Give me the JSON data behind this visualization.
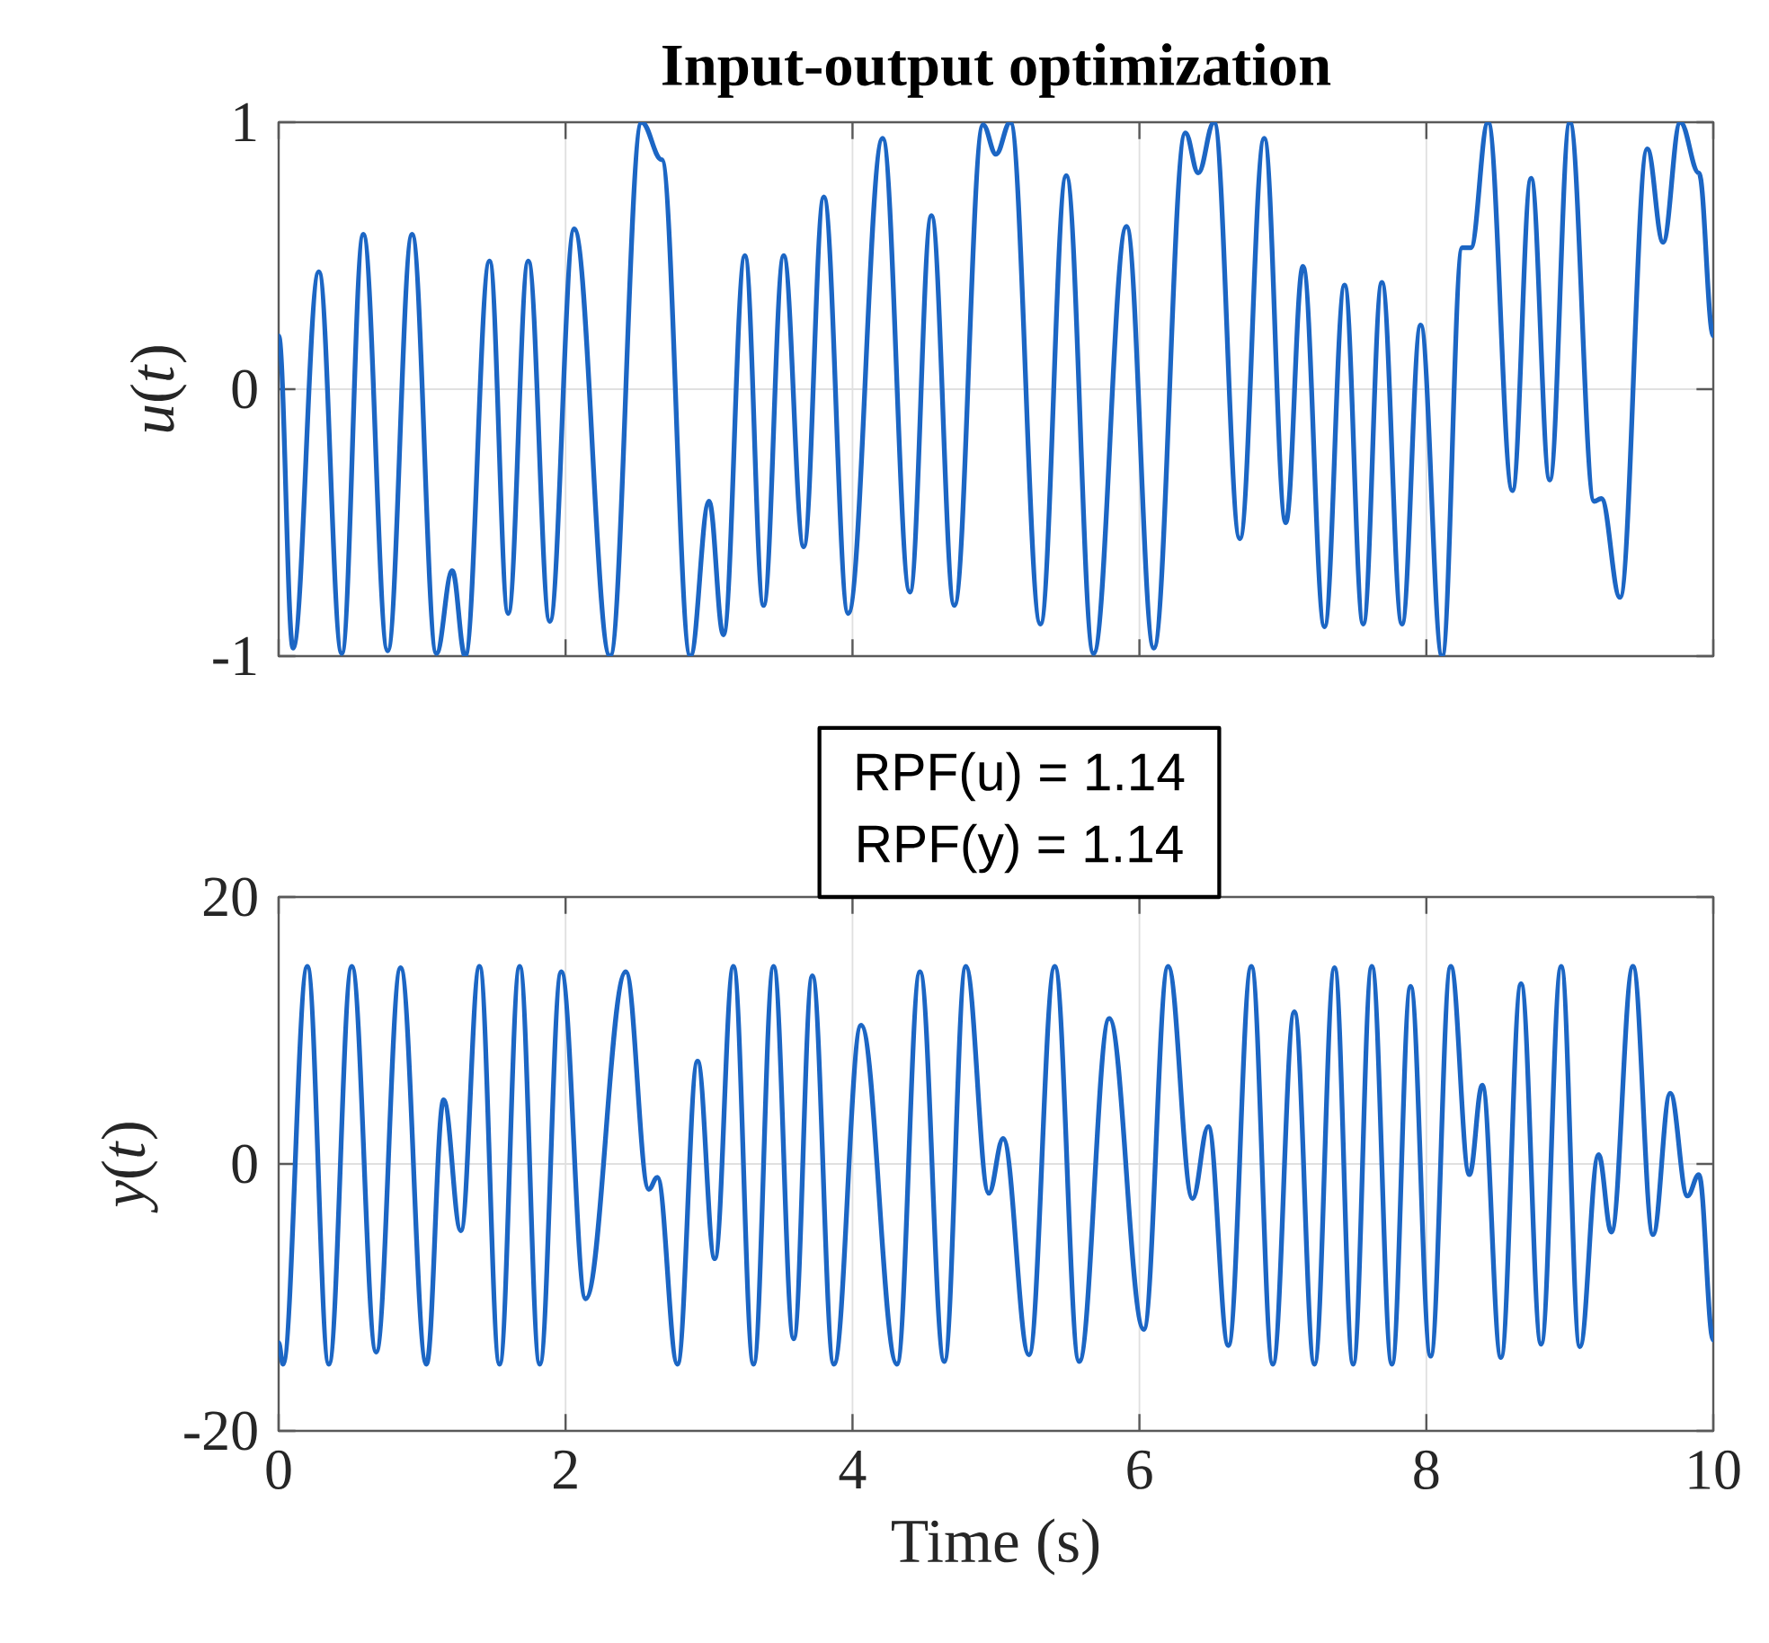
{
  "chart_data": [
    {
      "type": "line",
      "title": "Input-output optimization",
      "ylabel": "*u*(*t*)",
      "xlim": [
        0,
        10
      ],
      "ylim": [
        -1,
        1
      ],
      "xticks": [
        0,
        2,
        4,
        6,
        8,
        10
      ],
      "yticks": [
        -1,
        0,
        1
      ],
      "tick_labels": "y",
      "grid": true,
      "series": [
        {
          "color": "#1c66c4",
          "x": [
            0,
            0.1,
            0.28,
            0.44,
            0.59,
            0.76,
            0.93,
            1.1,
            1.21,
            1.3,
            1.47,
            1.6,
            1.74,
            1.89,
            2.06,
            2.31,
            2.53,
            2.67,
            2.87,
            3.0,
            3.1,
            3.25,
            3.38,
            3.52,
            3.66,
            3.8,
            3.97,
            4.21,
            4.4,
            4.55,
            4.71,
            4.91,
            5.0,
            5.1,
            5.31,
            5.49,
            5.68,
            5.91,
            6.1,
            6.32,
            6.41,
            6.52,
            6.7,
            6.87,
            7.02,
            7.14,
            7.29,
            7.43,
            7.56,
            7.69,
            7.83,
            7.96,
            8.11,
            8.25,
            8.31,
            8.43,
            8.6,
            8.73,
            8.86,
            9.0,
            9.17,
            9.22,
            9.35,
            9.54,
            9.65,
            9.77,
            9.9,
            10
          ],
          "values": [
            0.2,
            -0.97,
            0.44,
            -0.99,
            0.58,
            -0.98,
            0.58,
            -0.99,
            -0.68,
            -1.0,
            0.48,
            -0.84,
            0.48,
            -0.87,
            0.6,
            -1.0,
            1.0,
            0.86,
            -1.0,
            -0.42,
            -0.92,
            0.5,
            -0.81,
            0.5,
            -0.59,
            0.72,
            -0.84,
            0.94,
            -0.76,
            0.65,
            -0.81,
            0.99,
            0.88,
            1.0,
            -0.88,
            0.8,
            -0.99,
            0.61,
            -0.97,
            0.96,
            0.81,
            1.0,
            -0.56,
            0.94,
            -0.5,
            0.46,
            -0.89,
            0.39,
            -0.88,
            0.4,
            -0.88,
            0.24,
            -1.0,
            0.53,
            0.53,
            1.0,
            -0.38,
            0.79,
            -0.34,
            1.0,
            -0.42,
            -0.41,
            -0.78,
            0.9,
            0.55,
            1.0,
            0.81,
            0.2
          ]
        }
      ]
    },
    {
      "type": "line",
      "ylabel": "*y*(*t*)",
      "xlabel": "Time (s)",
      "xlim": [
        0,
        10
      ],
      "ylim": [
        -20,
        20
      ],
      "xticks": [
        0,
        2,
        4,
        6,
        8,
        10
      ],
      "yticks": [
        -20,
        0,
        20
      ],
      "grid": true,
      "annotations": [
        "RPF(u) = 1.14",
        "RPF(y) = 1.14"
      ],
      "series": [
        {
          "color": "#1c66c4",
          "x": [
            0,
            0.03,
            0.2,
            0.35,
            0.51,
            0.68,
            0.85,
            1.03,
            1.15,
            1.27,
            1.4,
            1.54,
            1.68,
            1.82,
            1.97,
            2.14,
            2.42,
            2.58,
            2.64,
            2.78,
            2.92,
            3.04,
            3.17,
            3.31,
            3.45,
            3.59,
            3.72,
            3.87,
            4.06,
            4.31,
            4.47,
            4.64,
            4.79,
            4.95,
            5.05,
            5.23,
            5.41,
            5.58,
            5.79,
            6.03,
            6.2,
            6.37,
            6.48,
            6.62,
            6.78,
            6.93,
            7.08,
            7.22,
            7.36,
            7.49,
            7.62,
            7.76,
            7.89,
            8.03,
            8.17,
            8.3,
            8.39,
            8.52,
            8.66,
            8.8,
            8.94,
            9.07,
            9.2,
            9.29,
            9.44,
            9.58,
            9.7,
            9.82,
            9.9,
            10
          ],
          "values": [
            -13.4,
            -15,
            14.8,
            -15,
            14.8,
            -14.1,
            14.7,
            -15,
            4.8,
            -5,
            14.8,
            -15,
            14.8,
            -15,
            14.4,
            -10.1,
            14.4,
            -1.9,
            -1,
            -15,
            7.7,
            -7.1,
            14.8,
            -15,
            14.8,
            -13.1,
            14.1,
            -15,
            10.4,
            -15,
            14.4,
            -14.8,
            14.8,
            -2.2,
            1.9,
            -14.3,
            14.8,
            -14.8,
            10.9,
            -12.4,
            14.8,
            -2.6,
            2.8,
            -13.6,
            14.8,
            -15,
            11.4,
            -15,
            14.7,
            -15,
            14.8,
            -15,
            13.3,
            -14.4,
            14.8,
            -0.8,
            5.9,
            -14.5,
            13.5,
            -13.5,
            14.8,
            -13.7,
            0.7,
            -5.1,
            14.8,
            -5.3,
            5.3,
            -2.4,
            -0.8,
            -13.2
          ]
        }
      ]
    }
  ]
}
